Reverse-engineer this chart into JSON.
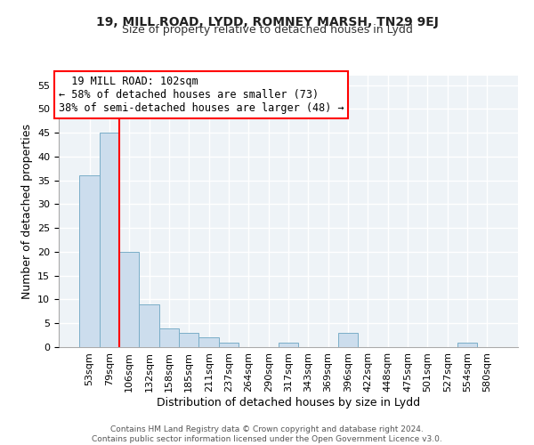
{
  "title1": "19, MILL ROAD, LYDD, ROMNEY MARSH, TN29 9EJ",
  "title2": "Size of property relative to detached houses in Lydd",
  "xlabel": "Distribution of detached houses by size in Lydd",
  "ylabel": "Number of detached properties",
  "bar_labels": [
    "53sqm",
    "79sqm",
    "106sqm",
    "132sqm",
    "158sqm",
    "185sqm",
    "211sqm",
    "237sqm",
    "264sqm",
    "290sqm",
    "317sqm",
    "343sqm",
    "369sqm",
    "396sqm",
    "422sqm",
    "448sqm",
    "475sqm",
    "501sqm",
    "527sqm",
    "554sqm",
    "580sqm"
  ],
  "bar_values": [
    36,
    45,
    20,
    9,
    4,
    3,
    2,
    1,
    0,
    0,
    1,
    0,
    0,
    3,
    0,
    0,
    0,
    0,
    0,
    1,
    0
  ],
  "bar_color": "#ccdded",
  "bar_edge_color": "#7aaec8",
  "property_line_color": "red",
  "annotation_title": "19 MILL ROAD: 102sqm",
  "annotation_line1": "← 58% of detached houses are smaller (73)",
  "annotation_line2": "38% of semi-detached houses are larger (48) →",
  "annotation_box_color": "white",
  "annotation_box_edge": "red",
  "ylim": [
    0,
    57
  ],
  "yticks": [
    0,
    5,
    10,
    15,
    20,
    25,
    30,
    35,
    40,
    45,
    50,
    55
  ],
  "footer1": "Contains HM Land Registry data © Crown copyright and database right 2024.",
  "footer2": "Contains public sector information licensed under the Open Government Licence v3.0.",
  "bg_color": "#eef3f7",
  "grid_color": "#ffffff",
  "title_fontsize": 10,
  "subtitle_fontsize": 9,
  "ylabel_fontsize": 9,
  "xlabel_fontsize": 9,
  "tick_fontsize": 8,
  "ann_fontsize": 8.5,
  "footer_fontsize": 6.5
}
